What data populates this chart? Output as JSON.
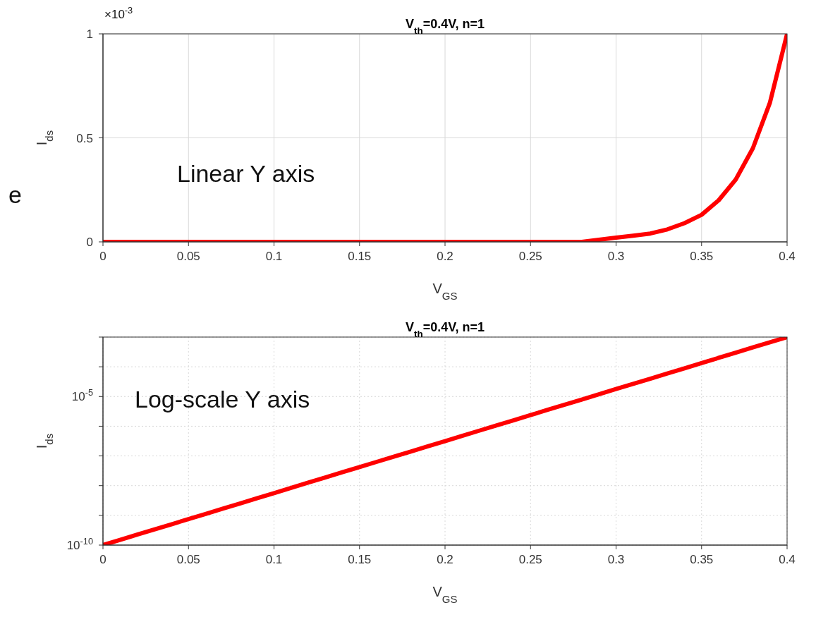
{
  "chart_data": [
    {
      "type": "line",
      "title": "V$_{th}$=0.4V, n=1",
      "xlabel": "V$_{GS}$",
      "ylabel": "I$_{ds}$",
      "annotations": [
        "×10$^{-3}$",
        "Linear Y axis",
        "e"
      ],
      "x": [
        0,
        0.01,
        0.02,
        0.03,
        0.04,
        0.05,
        0.06,
        0.07,
        0.08,
        0.09,
        0.1,
        0.11,
        0.12,
        0.13,
        0.14,
        0.15,
        0.16,
        0.17,
        0.18,
        0.19,
        0.2,
        0.21,
        0.22,
        0.23,
        0.24,
        0.25,
        0.26,
        0.27,
        0.28,
        0.29,
        0.3,
        0.31,
        0.32,
        0.33,
        0.34,
        0.35,
        0.36,
        0.37,
        0.38,
        0.39,
        0.4
      ],
      "series": [
        {
          "color": "#ff0000",
          "values": [
            0,
            0,
            0,
            0,
            0,
            0,
            0,
            0,
            0,
            0,
            0,
            0,
            0,
            0,
            0,
            0,
            0,
            0,
            0,
            0,
            0,
            0,
            0,
            0,
            0,
            0,
            0,
            0,
            0,
            0.01,
            0.02,
            0.03,
            0.04,
            0.06,
            0.09,
            0.13,
            0.2,
            0.3,
            0.45,
            0.67,
            1
          ]
        }
      ],
      "xlim": [
        0,
        0.4
      ],
      "xticks": [
        0,
        0.05,
        0.1,
        0.15,
        0.2,
        0.25,
        0.3,
        0.35,
        0.4
      ],
      "ylim": [
        0,
        1
      ],
      "yticks": [
        0,
        0.5,
        1
      ],
      "grid": true
    },
    {
      "type": "line",
      "title": "V$_{th}$=0.4V, n=1",
      "xlabel": "V$_{GS}$",
      "ylabel": "I$_{ds}$",
      "annotations": [
        "Log-scale Y axis"
      ],
      "log": "y",
      "x": [
        0,
        0.01,
        0.02,
        0.03,
        0.04,
        0.05,
        0.06,
        0.07,
        0.08,
        0.09,
        0.1,
        0.11,
        0.12,
        0.13,
        0.14,
        0.15,
        0.16,
        0.17,
        0.18,
        0.19,
        0.2,
        0.21,
        0.22,
        0.23,
        0.24,
        0.25,
        0.26,
        0.27,
        0.28,
        0.29,
        0.3,
        0.31,
        0.32,
        0.33,
        0.34,
        0.35,
        0.36,
        0.37,
        0.38,
        0.39,
        0.4
      ],
      "series": [
        {
          "color": "#ff0000",
          "values": [
            1e-10,
            1.5e-10,
            2.24e-10,
            3.35e-10,
            5.01e-10,
            7.5e-10,
            1.12e-09,
            1.68e-09,
            2.51e-09,
            3.76e-09,
            5.62e-09,
            8.41e-09,
            1.26e-08,
            1.88e-08,
            2.82e-08,
            4.22e-08,
            6.31e-08,
            9.44e-08,
            1.41e-07,
            2.11e-07,
            3.16e-07,
            4.73e-07,
            7.08e-07,
            1.06e-06,
            1.58e-06,
            2.37e-06,
            3.55e-06,
            5.31e-06,
            7.94e-06,
            1.19e-05,
            1.78e-05,
            2.66e-05,
            3.98e-05,
            5.96e-05,
            8.91e-05,
            0.000133,
            0.0002,
            0.000299,
            0.000447,
            0.000668,
            0.001
          ]
        }
      ],
      "xlim": [
        0,
        0.4
      ],
      "xticks": [
        0,
        0.05,
        0.1,
        0.15,
        0.2,
        0.25,
        0.3,
        0.35,
        0.4
      ],
      "ylim": [
        1e-10,
        0.001
      ],
      "yticks": [
        {
          "value": 1e-10,
          "label": "10$^{-10}$"
        },
        {
          "value": 1e-09,
          "label": null
        },
        {
          "value": 1e-08,
          "label": null
        },
        {
          "value": 1e-07,
          "label": null
        },
        {
          "value": 1e-06,
          "label": null
        },
        {
          "value": 1e-05,
          "label": "10$^{-5}$"
        },
        {
          "value": 0.0001,
          "label": null
        },
        {
          "value": 0.001,
          "label": null
        }
      ],
      "grid": true
    }
  ]
}
